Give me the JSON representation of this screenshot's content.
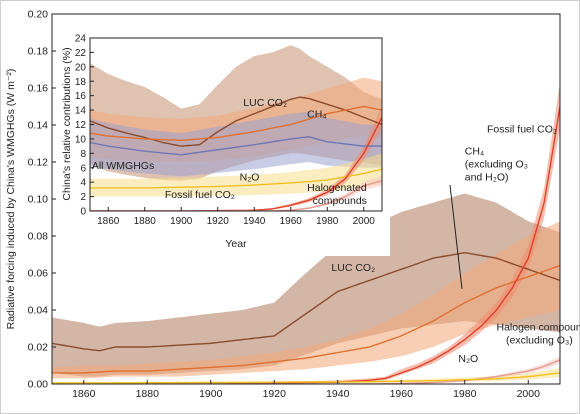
{
  "chart_data": [
    {
      "type": "area",
      "title": "",
      "xlabel": "",
      "ylabel": "Radiative forcing induced by China's WMGHGs (W m⁻²)",
      "xlim": [
        1850,
        2010
      ],
      "ylim": [
        0,
        0.2
      ],
      "x_ticks": [
        "1860",
        "1880",
        "1900",
        "1920",
        "1940",
        "1960",
        "1980",
        "2000"
      ],
      "y_ticks": [
        "0.00",
        "0.02",
        "0.04",
        "0.06",
        "0.08",
        "0.10",
        "0.12",
        "0.14",
        "0.16",
        "0.18",
        "0.20"
      ],
      "grid": false,
      "series": [
        {
          "name": "LUC CO₂",
          "color": "#8b4a2b",
          "band_color": "#b07a5e",
          "x": [
            1850,
            1860,
            1865,
            1870,
            1880,
            1890,
            1900,
            1910,
            1920,
            1930,
            1940,
            1950,
            1960,
            1970,
            1980,
            1990,
            2000,
            2010
          ],
          "values": [
            0.022,
            0.019,
            0.018,
            0.02,
            0.02,
            0.021,
            0.022,
            0.024,
            0.026,
            0.038,
            0.05,
            0.056,
            0.062,
            0.068,
            0.071,
            0.068,
            0.062,
            0.056
          ],
          "lower": [
            0.006,
            0.004,
            0.004,
            0.005,
            0.005,
            0.006,
            0.007,
            0.008,
            0.01,
            0.016,
            0.022,
            0.026,
            0.03,
            0.032,
            0.034,
            0.032,
            0.03,
            0.028
          ],
          "upper": [
            0.036,
            0.033,
            0.031,
            0.033,
            0.034,
            0.036,
            0.038,
            0.04,
            0.044,
            0.06,
            0.075,
            0.085,
            0.093,
            0.098,
            0.103,
            0.098,
            0.088,
            0.082
          ]
        },
        {
          "name": "CH₄ (excluding O₃ and H₂O)",
          "color": "#e07030",
          "band_color": "#f2a878",
          "x": [
            1850,
            1860,
            1870,
            1880,
            1890,
            1900,
            1910,
            1920,
            1930,
            1940,
            1950,
            1960,
            1970,
            1980,
            1990,
            2000,
            2010
          ],
          "values": [
            0.006,
            0.006,
            0.007,
            0.007,
            0.008,
            0.009,
            0.01,
            0.012,
            0.014,
            0.017,
            0.02,
            0.026,
            0.034,
            0.044,
            0.052,
            0.058,
            0.064
          ],
          "lower": [
            0.003,
            0.003,
            0.004,
            0.004,
            0.004,
            0.005,
            0.006,
            0.007,
            0.008,
            0.01,
            0.012,
            0.015,
            0.02,
            0.027,
            0.032,
            0.036,
            0.04
          ],
          "upper": [
            0.009,
            0.01,
            0.01,
            0.011,
            0.012,
            0.013,
            0.015,
            0.017,
            0.02,
            0.024,
            0.03,
            0.038,
            0.048,
            0.06,
            0.07,
            0.08,
            0.088
          ]
        },
        {
          "name": "Fossil fuel CO₂",
          "color": "#e0402a",
          "band_color": "#f08a70",
          "x": [
            1850,
            1900,
            1940,
            1950,
            1955,
            1960,
            1965,
            1970,
            1975,
            1980,
            1985,
            1990,
            1995,
            2000,
            2005,
            2010
          ],
          "values": [
            0,
            0,
            0.001,
            0.002,
            0.003,
            0.006,
            0.009,
            0.013,
            0.018,
            0.024,
            0.031,
            0.04,
            0.052,
            0.068,
            0.098,
            0.15
          ],
          "lower": [
            0,
            0,
            0.001,
            0.001,
            0.002,
            0.005,
            0.008,
            0.011,
            0.016,
            0.021,
            0.028,
            0.036,
            0.047,
            0.062,
            0.09,
            0.138
          ],
          "upper": [
            0,
            0,
            0.002,
            0.003,
            0.004,
            0.008,
            0.011,
            0.015,
            0.02,
            0.027,
            0.035,
            0.044,
            0.057,
            0.075,
            0.106,
            0.163
          ]
        },
        {
          "name": "Halogen compounds (excluding O₃)",
          "color": "#e89a90",
          "band_color": "#f6c8c0",
          "x": [
            1850,
            1950,
            1960,
            1970,
            1980,
            1990,
            2000,
            2005,
            2010
          ],
          "values": [
            0,
            0,
            0.0003,
            0.0008,
            0.0018,
            0.004,
            0.007,
            0.0095,
            0.013
          ],
          "lower": [
            0,
            0,
            0.0002,
            0.0006,
            0.0014,
            0.0032,
            0.0058,
            0.008,
            0.011
          ],
          "upper": [
            0,
            0,
            0.0004,
            0.001,
            0.0022,
            0.0048,
            0.0082,
            0.011,
            0.015
          ]
        },
        {
          "name": "N₂O",
          "color": "#f0c020",
          "band_color": "#f7de8a",
          "x": [
            1850,
            1900,
            1950,
            1970,
            1990,
            2000,
            2010
          ],
          "values": [
            0.0005,
            0.0008,
            0.0012,
            0.0018,
            0.0028,
            0.004,
            0.006
          ],
          "lower": [
            0.0002,
            0.0004,
            0.0006,
            0.001,
            0.0016,
            0.0024,
            0.0038
          ],
          "upper": [
            0.0009,
            0.0013,
            0.0019,
            0.0028,
            0.0042,
            0.0058,
            0.0085
          ]
        }
      ],
      "annotations": [
        {
          "text": "LUC CO₂",
          "x": 1938,
          "y": 0.061
        },
        {
          "text": "CH₄",
          "x": 1980,
          "y": 0.124
        },
        {
          "text": "(excluding O₃",
          "x": 1980,
          "y": 0.117
        },
        {
          "text": "and H₂O)",
          "x": 1980,
          "y": 0.11
        },
        {
          "text": "Fossil fuel CO₂",
          "x": 1987,
          "y": 0.136
        },
        {
          "text": "Halogen compounds",
          "x": 1990,
          "y": 0.029
        },
        {
          "text": "(excluding O₃)",
          "x": 1993,
          "y": 0.022
        },
        {
          "text": "N₂O",
          "x": 1978,
          "y": 0.012
        }
      ]
    },
    {
      "type": "area",
      "title": "",
      "xlabel": "Year",
      "ylabel": "China's relative contributions (%)",
      "xlim": [
        1850,
        2010
      ],
      "ylim": [
        0,
        24
      ],
      "x_ticks": [
        "1860",
        "1880",
        "1900",
        "1920",
        "1940",
        "1960",
        "1980",
        "2000"
      ],
      "y_ticks": [
        "0",
        "2",
        "4",
        "6",
        "8",
        "10",
        "12",
        "14",
        "16",
        "18",
        "20",
        "22",
        "24"
      ],
      "grid": false,
      "series": [
        {
          "name": "LUC CO₂",
          "color": "#8b4a2b",
          "band_color": "#c4906f",
          "x": [
            1850,
            1860,
            1870,
            1880,
            1890,
            1900,
            1910,
            1920,
            1930,
            1940,
            1950,
            1960,
            1965,
            1970,
            1980,
            1990,
            2000,
            2010
          ],
          "values": [
            12.5,
            11.5,
            10.8,
            10.2,
            9.5,
            9.0,
            9.2,
            11.0,
            12.5,
            13.5,
            14.5,
            15.5,
            15.8,
            15.6,
            14.8,
            14.0,
            13.0,
            12.0
          ],
          "lower": [
            6.5,
            5.5,
            5.0,
            4.6,
            4.3,
            4.2,
            4.5,
            5.5,
            6.3,
            7.0,
            7.5,
            8.0,
            8.0,
            7.8,
            7.4,
            7.0,
            6.7,
            6.3
          ],
          "upper": [
            20.5,
            19.0,
            18.0,
            17.2,
            15.8,
            14.2,
            14.8,
            17.5,
            20.0,
            21.5,
            22.0,
            23.0,
            22.5,
            21.5,
            20.0,
            18.5,
            16.5,
            15.5
          ]
        },
        {
          "name": "CH₄",
          "color": "#e07030",
          "band_color": "#f2a878",
          "x": [
            1850,
            1860,
            1880,
            1900,
            1920,
            1940,
            1960,
            1980,
            2000,
            2010
          ],
          "values": [
            10.8,
            10.4,
            10.0,
            9.8,
            10.2,
            11.0,
            12.0,
            13.5,
            14.5,
            14.0
          ],
          "lower": [
            7.5,
            7.2,
            6.9,
            6.8,
            7.0,
            7.6,
            8.5,
            9.5,
            10.5,
            10.0
          ],
          "upper": [
            14.0,
            13.5,
            13.0,
            12.8,
            13.2,
            14.3,
            15.5,
            17.0,
            18.5,
            18.0
          ]
        },
        {
          "name": "All WMGHGs",
          "color": "#6c78b4",
          "band_color": "#9aa3cf",
          "x": [
            1850,
            1860,
            1880,
            1900,
            1920,
            1940,
            1960,
            1970,
            1980,
            2000,
            2010
          ],
          "values": [
            9.5,
            9.0,
            8.3,
            7.8,
            8.5,
            9.2,
            10.0,
            10.3,
            9.6,
            9.0,
            9.0
          ],
          "lower": [
            6.2,
            5.8,
            5.2,
            4.8,
            5.3,
            5.8,
            6.5,
            6.8,
            6.3,
            6.0,
            6.0
          ],
          "upper": [
            12.8,
            12.2,
            11.3,
            10.8,
            11.7,
            12.6,
            13.5,
            13.8,
            12.9,
            12.0,
            12.0
          ]
        },
        {
          "name": "N₂O",
          "color": "#f0c020",
          "band_color": "#f7de8a",
          "x": [
            1850,
            1880,
            1900,
            1920,
            1940,
            1960,
            1980,
            2000,
            2010
          ],
          "values": [
            3.2,
            3.2,
            3.3,
            3.4,
            3.6,
            3.9,
            4.3,
            5.2,
            5.8
          ],
          "lower": [
            2.0,
            2.0,
            2.0,
            2.1,
            2.2,
            2.4,
            2.7,
            3.3,
            3.8
          ],
          "upper": [
            4.5,
            4.5,
            4.6,
            4.8,
            5.0,
            5.4,
            6.0,
            7.2,
            8.0
          ]
        },
        {
          "name": "Fossil fuel CO₂",
          "color": "#e0402a",
          "band_color": "#f08a70",
          "x": [
            1850,
            1900,
            1940,
            1950,
            1960,
            1970,
            1980,
            1990,
            2000,
            2010
          ],
          "values": [
            0,
            0,
            0.1,
            0.3,
            0.8,
            1.5,
            2.6,
            4.5,
            8.0,
            13.0
          ],
          "lower": [
            0,
            0,
            0.05,
            0.2,
            0.6,
            1.2,
            2.2,
            3.9,
            7.0,
            11.5
          ],
          "upper": [
            0,
            0,
            0.15,
            0.4,
            1.0,
            1.8,
            3.0,
            5.1,
            9.0,
            14.5
          ]
        },
        {
          "name": "Halogenated compounds",
          "color": "#e89a90",
          "band_color": "#f6c8c0",
          "x": [
            1850,
            1950,
            1960,
            1970,
            1980,
            1990,
            2000,
            2010
          ],
          "values": [
            0,
            0,
            0.1,
            0.4,
            1.0,
            2.0,
            3.5,
            4.2
          ],
          "lower": [
            0,
            0,
            0.05,
            0.3,
            0.8,
            1.6,
            2.9,
            3.5
          ],
          "upper": [
            0,
            0,
            0.15,
            0.5,
            1.2,
            2.4,
            4.1,
            4.9
          ]
        }
      ],
      "annotations": [
        {
          "text": "LUC CO₂",
          "x": 1934,
          "y": 14.6
        },
        {
          "text": "CH₄",
          "x": 1969,
          "y": 13.0
        },
        {
          "text": "All WMGHGs",
          "x": 1851,
          "y": 5.8
        },
        {
          "text": "N₂O",
          "x": 1932,
          "y": 4.2
        },
        {
          "text": "Fossil fuel CO₂",
          "x": 1891,
          "y": 1.8
        },
        {
          "text": "Halogenated",
          "x": 1969,
          "y": 2.8
        },
        {
          "text": "compounds",
          "x": 1972,
          "y": 1.0
        }
      ]
    }
  ]
}
